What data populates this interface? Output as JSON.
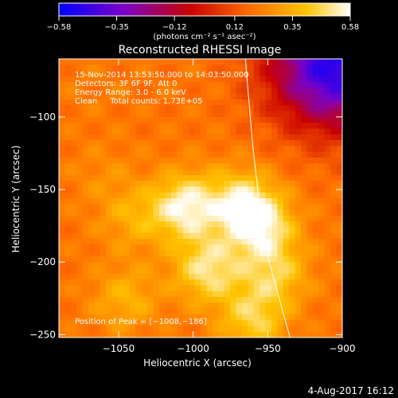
{
  "chart_data": {
    "type": "heatmap",
    "title": "Reconstructed RHESSI Image",
    "xlabel": "Heliocentric X (arcsec)",
    "ylabel": "Heliocentric Y (arcsec)",
    "xlim": [
      -1090,
      -900
    ],
    "ylim": [
      -252,
      -60
    ],
    "x_ticks": [
      -1050,
      -1000,
      -950,
      -900
    ],
    "y_ticks": [
      -100,
      -150,
      -200,
      -250
    ],
    "x_tick_labels": [
      "−1050",
      "−1000",
      "−950",
      "−900"
    ],
    "y_tick_labels": [
      "−100",
      "−150",
      "−200",
      "−250"
    ],
    "colorbar": {
      "min": -0.58,
      "max": 0.58,
      "ticks": [
        -0.58,
        -0.35,
        -0.12,
        0.12,
        0.35,
        0.58
      ],
      "tick_labels": [
        "−0.58",
        "−0.35",
        "−0.12",
        "0.12",
        "0.35",
        "0.58"
      ],
      "unit_label": "(photons cm⁻² s⁻¹ asec⁻²)",
      "colormap": [
        "#0000ff",
        "#7a00c8",
        "#c80000",
        "#ff6a00",
        "#ffc400",
        "#ffffff"
      ]
    },
    "annotations": [
      "15-Nov-2014 13:53:50.000 to 14:03:50.000",
      "Detectors: 3F 6F 9F, Att 0",
      "Energy Range: 3.0 - 6.0 keV",
      "Clean     Total counts: 1.73E+05"
    ],
    "peak_label": "Position of Peak = [−1008,−186]",
    "peak": [
      -1008,
      -186
    ],
    "limb_curve": [
      [
        -965,
        -60
      ],
      [
        -960,
        -120
      ],
      [
        -955,
        -165
      ],
      [
        -949,
        -200
      ],
      [
        -941,
        -230
      ],
      [
        -935,
        -252
      ]
    ],
    "sources": [
      {
        "x": -1005,
        "y": -162,
        "value": 0.55
      },
      {
        "x": -968,
        "y": -158,
        "value": 0.46
      },
      {
        "x": -955,
        "y": -175,
        "value": 0.52
      },
      {
        "x": -990,
        "y": -205,
        "value": 0.5
      },
      {
        "x": -945,
        "y": -208,
        "value": 0.42
      },
      {
        "x": -1040,
        "y": -170,
        "value": 0.34
      },
      {
        "x": -1060,
        "y": -140,
        "value": 0.26
      },
      {
        "x": -1070,
        "y": -80,
        "value": 0.22
      },
      {
        "x": -1045,
        "y": -225,
        "value": 0.36
      },
      {
        "x": -960,
        "y": -240,
        "value": 0.44
      }
    ],
    "dark_corner": {
      "x": -905,
      "y": -65,
      "value": -0.5
    }
  },
  "footer": {
    "date": "4-Aug-2017 16:12"
  }
}
